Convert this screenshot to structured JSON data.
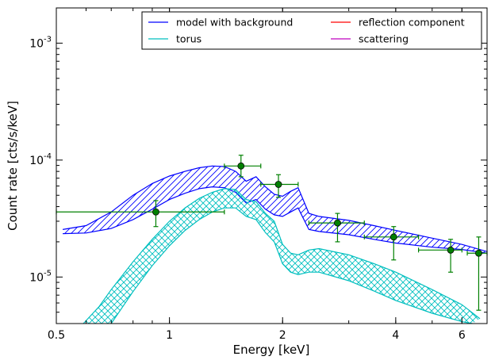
{
  "chart_data": {
    "type": "line",
    "xlabel": "Energy [keV]",
    "ylabel": "Count rate [cts/s/keV]",
    "xscale": "log",
    "yscale": "log",
    "xlim": [
      0.5,
      7.0
    ],
    "ylim": [
      4e-06,
      0.002
    ],
    "x_ticks": [
      {
        "value": 0.5,
        "label": "0.5"
      },
      {
        "value": 1,
        "label": "1"
      },
      {
        "value": 2,
        "label": "2"
      },
      {
        "value": 4,
        "label": "4"
      },
      {
        "value": 6,
        "label": "6"
      }
    ],
    "y_ticks": [
      {
        "value": 1e-05,
        "base": "10",
        "exp": "-5"
      },
      {
        "value": 0.0001,
        "base": "10",
        "exp": "-4"
      },
      {
        "value": 0.001,
        "base": "10",
        "exp": "-3"
      }
    ],
    "legend": {
      "placement": "top-right",
      "columns": 2,
      "entries": [
        {
          "label": "model with background",
          "color": "#0000ff"
        },
        {
          "label": "reflection component",
          "color": "#ff0000"
        },
        {
          "label": "torus",
          "color": "#00bfbf"
        },
        {
          "label": "scattering",
          "color": "#bf00bf"
        }
      ]
    },
    "bands": [
      {
        "name": "model with background",
        "color": "#0000ff",
        "hatch": "diagonal",
        "x": [
          0.52,
          0.6,
          0.7,
          0.8,
          0.9,
          1.0,
          1.1,
          1.2,
          1.3,
          1.4,
          1.5,
          1.6,
          1.7,
          1.8,
          1.9,
          2.0,
          2.1,
          2.2,
          2.35,
          2.5,
          3.0,
          3.5,
          4.0,
          5.0,
          6.0,
          7.0
        ],
        "upper": [
          2.55e-05,
          2.75e-05,
          3.6e-05,
          5e-05,
          6.3e-05,
          7.3e-05,
          8e-05,
          8.6e-05,
          8.9e-05,
          8.8e-05,
          8e-05,
          6.6e-05,
          7.2e-05,
          5.9e-05,
          5.1e-05,
          4.9e-05,
          5.4e-05,
          5.8e-05,
          3.5e-05,
          3.3e-05,
          3.05e-05,
          2.75e-05,
          2.5e-05,
          2.15e-05,
          1.9e-05,
          1.65e-05
        ],
        "lower": [
          2.35e-05,
          2.38e-05,
          2.6e-05,
          3.1e-05,
          3.8e-05,
          4.6e-05,
          5.2e-05,
          5.7e-05,
          5.9e-05,
          5.8e-05,
          5.3e-05,
          4.3e-05,
          4.6e-05,
          3.8e-05,
          3.4e-05,
          3.3e-05,
          3.6e-05,
          3.9e-05,
          2.55e-05,
          2.45e-05,
          2.3e-05,
          2.1e-05,
          1.95e-05,
          1.8e-05,
          1.72e-05,
          1.6e-05
        ]
      },
      {
        "name": "torus",
        "color": "#00bfbf",
        "hatch": "cross",
        "x_upper": [
          0.59,
          0.65,
          0.7,
          0.8,
          0.9,
          1.0,
          1.1,
          1.2,
          1.3,
          1.4,
          1.5,
          1.6,
          1.7,
          1.8,
          1.9,
          2.0,
          2.1,
          2.2,
          2.35,
          2.5,
          3.0,
          3.5,
          4.0,
          5.0,
          6.0,
          6.7
        ],
        "upper": [
          4e-06,
          5.6e-06,
          7.8e-06,
          1.35e-05,
          2.1e-05,
          3e-05,
          3.9e-05,
          4.7e-05,
          5.3e-05,
          5.7e-05,
          5.6e-05,
          4.6e-05,
          4.4e-05,
          3.5e-05,
          3e-05,
          1.9e-05,
          1.6e-05,
          1.55e-05,
          1.7e-05,
          1.75e-05,
          1.55e-05,
          1.3e-05,
          1.1e-05,
          7.8e-06,
          5.8e-06,
          4.4e-06
        ],
        "x_lower": [
          0.7,
          0.8,
          0.9,
          1.0,
          1.1,
          1.2,
          1.3,
          1.4,
          1.5,
          1.6,
          1.7,
          1.8,
          1.9,
          2.0,
          2.1,
          2.2,
          2.35,
          2.5,
          3.0,
          3.5,
          4.0,
          5.0,
          6.0,
          6.4
        ],
        "lower": [
          4e-06,
          7.5e-06,
          1.25e-05,
          1.85e-05,
          2.5e-05,
          3.1e-05,
          3.6e-05,
          3.9e-05,
          3.9e-05,
          3.3e-05,
          3.1e-05,
          2.4e-05,
          2e-05,
          1.3e-05,
          1.1e-05,
          1.05e-05,
          1.1e-05,
          1.1e-05,
          9.3e-06,
          7.6e-06,
          6.3e-06,
          4.9e-06,
          4.15e-06,
          4e-06
        ]
      }
    ],
    "data_points": {
      "color": "#006400",
      "errorbar_color": "#008000",
      "points": [
        {
          "x": 0.92,
          "y": 3.6e-05,
          "xerr": [
            0.5,
            1.4
          ],
          "yerr": [
            2.7e-05,
            4.5e-05
          ]
        },
        {
          "x": 1.55,
          "y": 8.9e-05,
          "xerr": [
            1.4,
            1.75
          ],
          "yerr": [
            7.2e-05,
            0.00011
          ]
        },
        {
          "x": 1.95,
          "y": 6.2e-05,
          "xerr": [
            1.75,
            2.2
          ],
          "yerr": [
            4.8e-05,
            7.5e-05
          ]
        },
        {
          "x": 2.8,
          "y": 2.9e-05,
          "xerr": [
            2.35,
            3.3
          ],
          "yerr": [
            2e-05,
            3.5e-05
          ]
        },
        {
          "x": 3.95,
          "y": 2.2e-05,
          "xerr": [
            3.3,
            4.6
          ],
          "yerr": [
            1.4e-05,
            2.7e-05
          ]
        },
        {
          "x": 5.6,
          "y": 1.7e-05,
          "xerr": [
            4.6,
            6.0
          ],
          "yerr": [
            1.1e-05,
            2.1e-05
          ]
        },
        {
          "x": 6.65,
          "y": 1.6e-05,
          "xerr": [
            6.2,
            7.0
          ],
          "yerr": [
            5.2e-06,
            2.2e-05
          ]
        }
      ]
    }
  }
}
